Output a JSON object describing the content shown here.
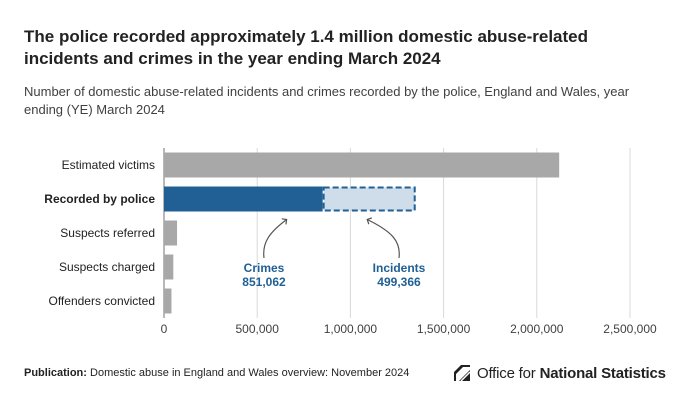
{
  "title": "The police recorded approximately 1.4 million domestic abuse-related incidents and crimes in the year ending March 2024",
  "subtitle": "Number of domestic abuse-related incidents and crimes recorded by the police, England and Wales, year ending (YE) March 2024",
  "chart_data": {
    "type": "bar",
    "orientation": "horizontal",
    "categories": [
      "Estimated victims",
      "Recorded by police",
      "Suspects referred",
      "Suspects charged",
      "Offenders convicted"
    ],
    "highlighted_category": "Recorded by police",
    "values": [
      2120000,
      1350428,
      70000,
      50000,
      40000
    ],
    "stacked_segments": {
      "category": "Recorded by police",
      "segments": [
        {
          "name": "Crimes",
          "value": 851062,
          "label_value": "851,062",
          "style": "solid",
          "color": "#206095"
        },
        {
          "name": "Incidents",
          "value": 499366,
          "label_value": "499,366",
          "style": "dashed",
          "color": "#cfdcea"
        }
      ]
    },
    "xlim": [
      0,
      2500000
    ],
    "ticks": [
      0,
      500000,
      1000000,
      1500000,
      2000000,
      2500000
    ],
    "tick_labels": [
      "0",
      "500,000",
      "1,000,000",
      "1,500,000",
      "2,000,000",
      "2,500,000"
    ],
    "grid": true,
    "colors": {
      "bar": "#a8a8a8",
      "primary": "#206095",
      "secondary": "#cfdcea",
      "grid": "#d9d9d9",
      "axis": "#707071"
    }
  },
  "footer": {
    "publication_label": "Publication:",
    "publication_text": "Domestic abuse in England and Wales overview: November 2024"
  },
  "brand": {
    "name_regular": "Office for",
    "name_bold": "National Statistics",
    "logo_icon": "ons-logo-icon"
  }
}
